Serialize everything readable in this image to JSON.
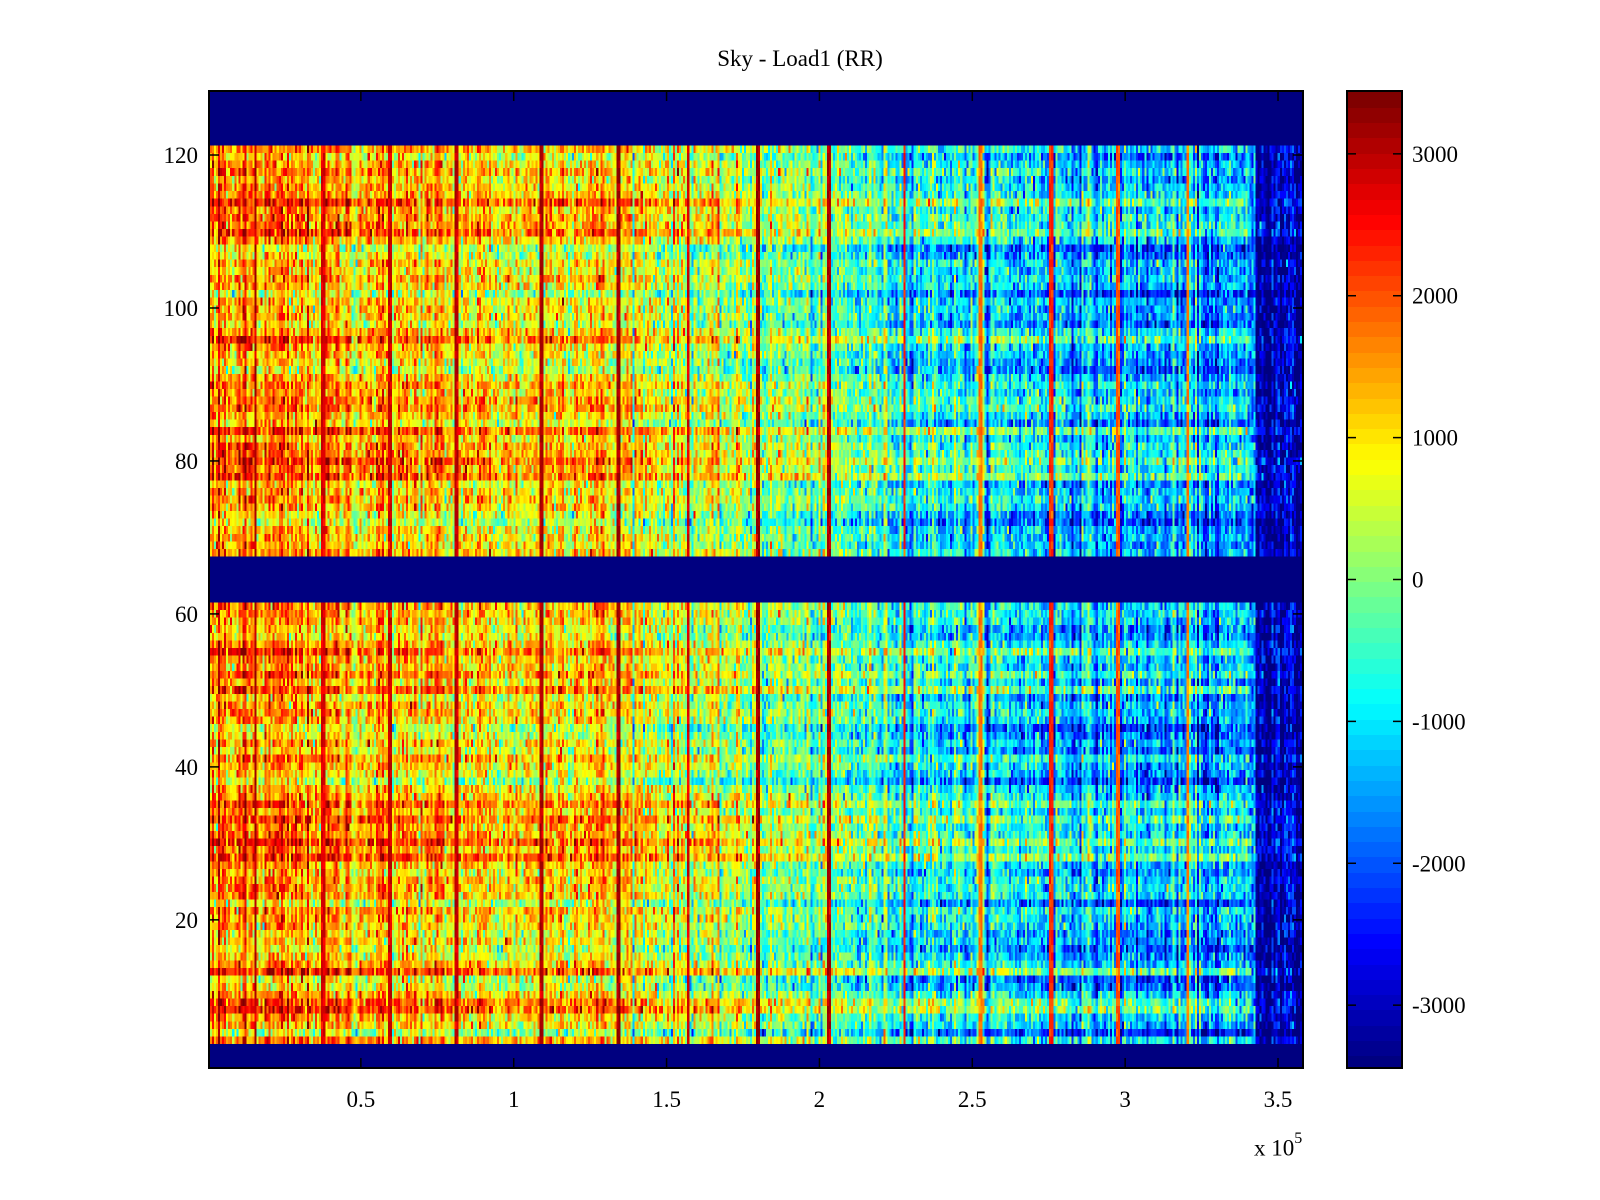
{
  "chart_data": {
    "type": "heatmap",
    "title": "Sky - Load1 (RR)",
    "xlabel": "",
    "ylabel": "",
    "x_multiplier_label": "x 10",
    "x_multiplier_exponent": "5",
    "xlim": [
      0,
      3.585
    ],
    "ylim": [
      0.5,
      128.5
    ],
    "rows": 128,
    "x_ticks": [
      {
        "value": 0.5,
        "label": "0.5"
      },
      {
        "value": 1,
        "label": "1"
      },
      {
        "value": 1.5,
        "label": "1.5"
      },
      {
        "value": 2,
        "label": "2"
      },
      {
        "value": 2.5,
        "label": "2.5"
      },
      {
        "value": 3,
        "label": "3"
      },
      {
        "value": 3.5,
        "label": "3.5"
      }
    ],
    "y_ticks": [
      {
        "value": 20,
        "label": "20"
      },
      {
        "value": 40,
        "label": "40"
      },
      {
        "value": 60,
        "label": "60"
      },
      {
        "value": 80,
        "label": "80"
      },
      {
        "value": 100,
        "label": "100"
      },
      {
        "value": 120,
        "label": "120"
      }
    ],
    "colorbar": {
      "colormap": "jet",
      "clim": [
        -3450,
        3450
      ],
      "ticks": [
        {
          "value": 3000,
          "label": "3000"
        },
        {
          "value": 2000,
          "label": "2000"
        },
        {
          "value": 1000,
          "label": "1000"
        },
        {
          "value": 0,
          "label": "0"
        },
        {
          "value": -1000,
          "label": "-1000"
        },
        {
          "value": -2000,
          "label": "-2000"
        },
        {
          "value": -3000,
          "label": "-3000"
        }
      ],
      "levels": 64
    },
    "blank_rows": [
      [
        1,
        3
      ],
      [
        62,
        67
      ],
      [
        122,
        128
      ]
    ],
    "blank_value": -3450,
    "trend": [
      {
        "x": 0.0,
        "value": 1600
      },
      {
        "x": 0.5,
        "value": 1300
      },
      {
        "x": 1.0,
        "value": 900
      },
      {
        "x": 1.2,
        "value": 1300
      },
      {
        "x": 1.4,
        "value": 900
      },
      {
        "x": 1.7,
        "value": 300
      },
      {
        "x": 2.0,
        "value": -200
      },
      {
        "x": 2.5,
        "value": -800
      },
      {
        "x": 3.0,
        "value": -1300
      },
      {
        "x": 3.42,
        "value": -1500
      },
      {
        "x": 3.45,
        "value": -3000
      },
      {
        "x": 3.585,
        "value": -3100
      }
    ],
    "line_features": [
      {
        "x": 0.15,
        "value": 3300
      },
      {
        "x": 0.37,
        "value": 3000
      },
      {
        "x": 0.59,
        "value": 3100
      },
      {
        "x": 0.81,
        "value": 3200
      },
      {
        "x": 1.09,
        "value": 3300
      },
      {
        "x": 1.34,
        "value": 3400
      },
      {
        "x": 1.57,
        "value": 3000
      },
      {
        "x": 1.8,
        "value": 3450
      },
      {
        "x": 2.03,
        "value": 3300
      },
      {
        "x": 2.28,
        "value": 2600
      },
      {
        "x": 2.53,
        "value": 2000
      },
      {
        "x": 2.76,
        "value": 2500
      },
      {
        "x": 2.98,
        "value": 2200
      },
      {
        "x": 3.21,
        "value": 1900
      }
    ],
    "warm_rows": [
      8,
      9,
      13,
      28,
      30,
      33,
      35,
      50,
      55,
      78,
      80,
      84,
      96,
      110,
      114
    ],
    "cool_rows": [
      5,
      12,
      16,
      22,
      38,
      45,
      65,
      72,
      92,
      102,
      108
    ]
  }
}
